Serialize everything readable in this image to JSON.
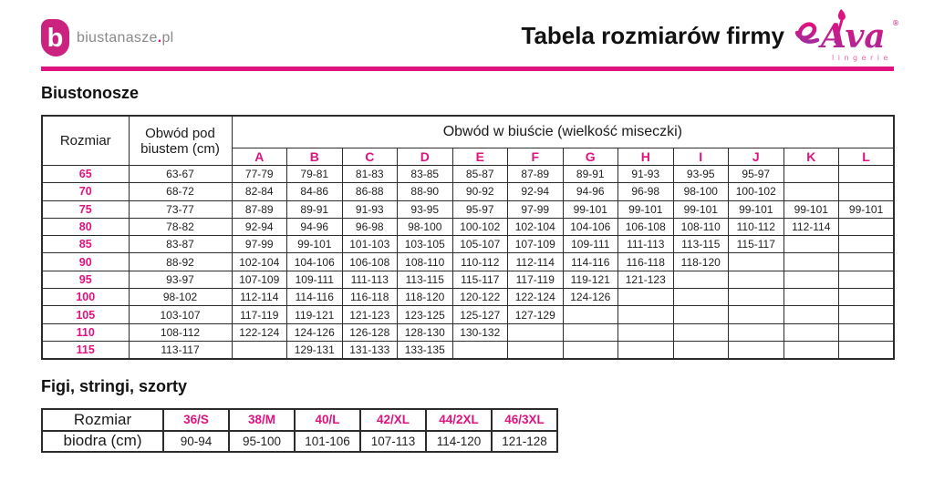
{
  "colors": {
    "accent": "#e0127f",
    "logo_magenta": "#cb2280",
    "text": "#1a1a1a",
    "table_border": "#2c2c2c",
    "site_gray": "#8a8a8a"
  },
  "header": {
    "site": {
      "mark": "b",
      "pre": "biustanasze",
      "dot": ".",
      "suf": "pl"
    },
    "title": "Tabela rozmiarów firmy",
    "brand": {
      "name": "Ava",
      "registered": "®",
      "tagline": "lingerie"
    }
  },
  "bras": {
    "heading": "Biustonosze",
    "size_header": "Rozmiar",
    "underbust_header": "Obwód pod biustem (cm)",
    "bust_header": "Obwód w biuście (wielkość miseczki)",
    "cups": [
      "A",
      "B",
      "C",
      "D",
      "E",
      "F",
      "G",
      "H",
      "I",
      "J",
      "K",
      "L"
    ],
    "rows": [
      {
        "size": "65",
        "underbust": "63-67",
        "cells": [
          "77-79",
          "79-81",
          "81-83",
          "83-85",
          "85-87",
          "87-89",
          "89-91",
          "91-93",
          "93-95",
          "95-97",
          "",
          ""
        ]
      },
      {
        "size": "70",
        "underbust": "68-72",
        "cells": [
          "82-84",
          "84-86",
          "86-88",
          "88-90",
          "90-92",
          "92-94",
          "94-96",
          "96-98",
          "98-100",
          "100-102",
          "",
          ""
        ]
      },
      {
        "size": "75",
        "underbust": "73-77",
        "cells": [
          "87-89",
          "89-91",
          "91-93",
          "93-95",
          "95-97",
          "97-99",
          "99-101",
          "99-101",
          "99-101",
          "99-101",
          "99-101",
          "99-101"
        ]
      },
      {
        "size": "80",
        "underbust": "78-82",
        "cells": [
          "92-94",
          "94-96",
          "96-98",
          "98-100",
          "100-102",
          "102-104",
          "104-106",
          "106-108",
          "108-110",
          "110-112",
          "112-114",
          ""
        ]
      },
      {
        "size": "85",
        "underbust": "83-87",
        "cells": [
          "97-99",
          "99-101",
          "101-103",
          "103-105",
          "105-107",
          "107-109",
          "109-111",
          "111-113",
          "113-115",
          "115-117",
          "",
          ""
        ]
      },
      {
        "size": "90",
        "underbust": "88-92",
        "cells": [
          "102-104",
          "104-106",
          "106-108",
          "108-110",
          "110-112",
          "112-114",
          "114-116",
          "116-118",
          "118-120",
          "",
          "",
          ""
        ]
      },
      {
        "size": "95",
        "underbust": "93-97",
        "cells": [
          "107-109",
          "109-111",
          "111-113",
          "113-115",
          "115-117",
          "117-119",
          "119-121",
          "121-123",
          "",
          "",
          "",
          ""
        ]
      },
      {
        "size": "100",
        "underbust": "98-102",
        "cells": [
          "112-114",
          "114-116",
          "116-118",
          "118-120",
          "120-122",
          "122-124",
          "124-126",
          "",
          "",
          "",
          "",
          ""
        ]
      },
      {
        "size": "105",
        "underbust": "103-107",
        "cells": [
          "117-119",
          "119-121",
          "121-123",
          "123-125",
          "125-127",
          "127-129",
          "",
          "",
          "",
          "",
          "",
          ""
        ]
      },
      {
        "size": "110",
        "underbust": "108-112",
        "cells": [
          "122-124",
          "124-126",
          "126-128",
          "128-130",
          "130-132",
          "",
          "",
          "",
          "",
          "",
          "",
          ""
        ]
      },
      {
        "size": "115",
        "underbust": "113-117",
        "cells": [
          "",
          "129-131",
          "131-133",
          "133-135",
          "",
          "",
          "",
          "",
          "",
          "",
          "",
          ""
        ]
      }
    ]
  },
  "panties": {
    "heading": "Figi, stringi, szorty",
    "size_label": "Rozmiar",
    "hips_label": "biodra (cm)",
    "sizes": [
      "36/S",
      "38/M",
      "40/L",
      "42/XL",
      "44/2XL",
      "46/3XL"
    ],
    "hips": [
      "90-94",
      "95-100",
      "101-106",
      "107-113",
      "114-120",
      "121-128"
    ]
  }
}
